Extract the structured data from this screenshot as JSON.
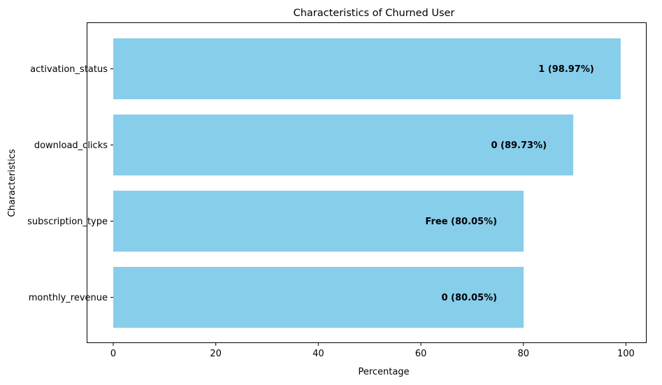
{
  "chart_data": {
    "type": "bar",
    "orientation": "horizontal",
    "title": "Characteristics of Churned User",
    "xlabel": "Percentage",
    "ylabel": "Characteristics",
    "xlim": [
      0,
      103.9
    ],
    "xticks": [
      0,
      20,
      40,
      60,
      80,
      100
    ],
    "categories": [
      "monthly_revenue",
      "subscription_type",
      "download_clicks",
      "activation_status"
    ],
    "values": [
      80.05,
      80.05,
      89.73,
      98.97
    ],
    "bar_labels": [
      "0 (80.05%)",
      "Free (80.05%)",
      "0 (89.73%)",
      "1 (98.97%)"
    ],
    "bar_color": "#87ceeb",
    "grid": false,
    "legend": null
  }
}
